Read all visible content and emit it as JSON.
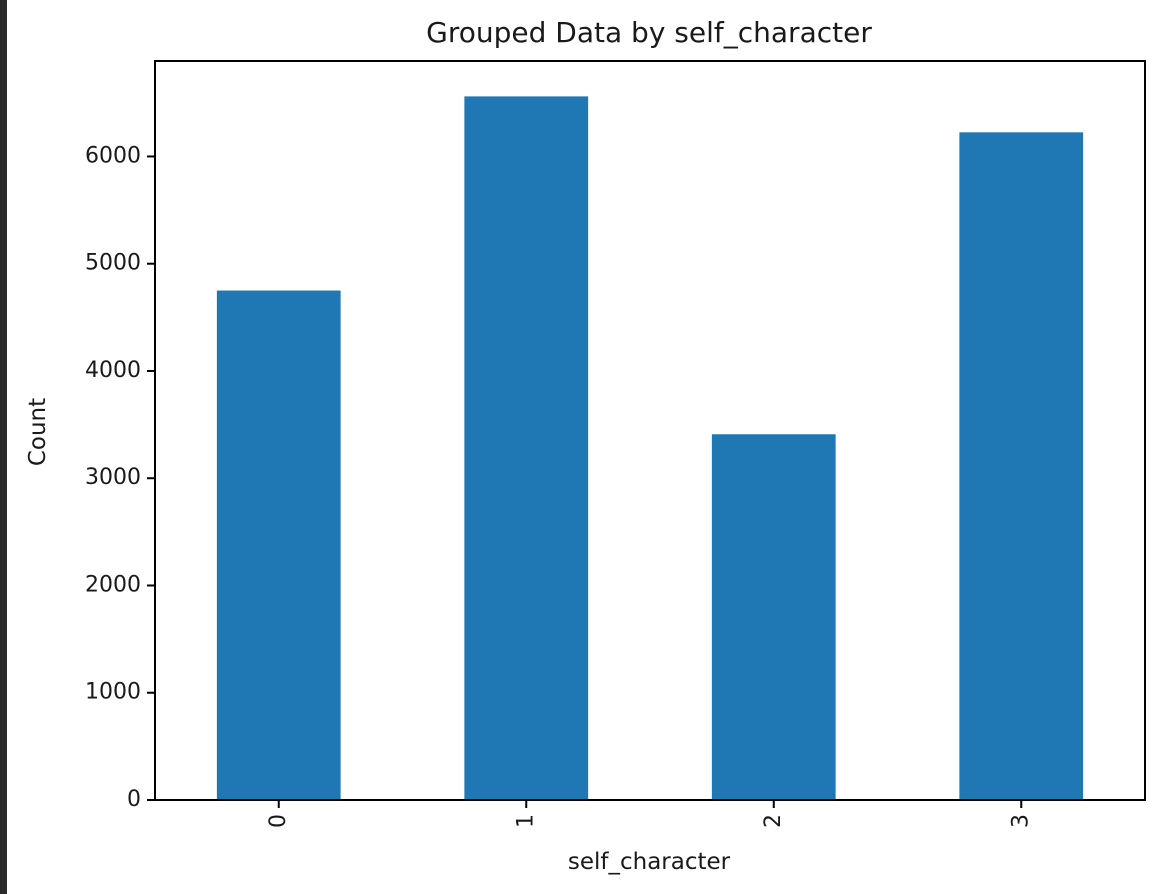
{
  "chart_data": {
    "type": "bar",
    "title": "Grouped Data by self_character",
    "xlabel": "self_character",
    "ylabel": "Count",
    "categories": [
      "0",
      "1",
      "2",
      "3"
    ],
    "values": [
      4750,
      6560,
      3410,
      6225
    ],
    "ylim": [
      0,
      6890
    ],
    "yticks": [
      0,
      1000,
      2000,
      3000,
      4000,
      5000,
      6000
    ],
    "ytick_labels": [
      "0",
      "1000",
      "2000",
      "3000",
      "4000",
      "5000",
      "6000"
    ],
    "bar_color": "#1f77b4",
    "grid": false,
    "legend": false,
    "x_tick_rotation": "vertical"
  }
}
